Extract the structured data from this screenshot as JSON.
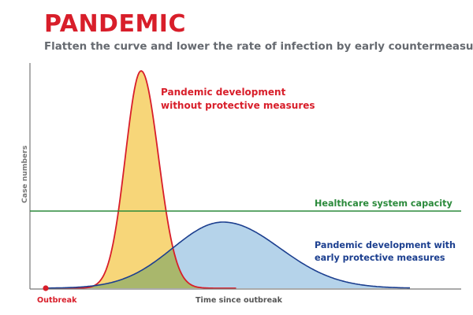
{
  "title": "PANDEMIC",
  "subtitle": "Flatten the curve and lower the rate of infection by early countermeasures",
  "axes": {
    "y_label": "Case numbers",
    "x_label": "Time since outbreak",
    "origin_label": "Outbreak"
  },
  "annotations": {
    "red_line1": "Pandemic development",
    "red_line2": "without protective measures",
    "capacity": "Healthcare system capacity",
    "blue_line1": "Pandemic development with",
    "blue_line2": "early protective measures"
  },
  "colors": {
    "title": "#d81e2a",
    "red_curve": "#d81e2a",
    "red_fill": "#f7d679",
    "blue_curve": "#1c3f8f",
    "blue_fill": "#b5d3ea",
    "overlap_fill": "#a9b76c",
    "capacity_line": "#2b8a3b",
    "axis": "#777777"
  }
}
